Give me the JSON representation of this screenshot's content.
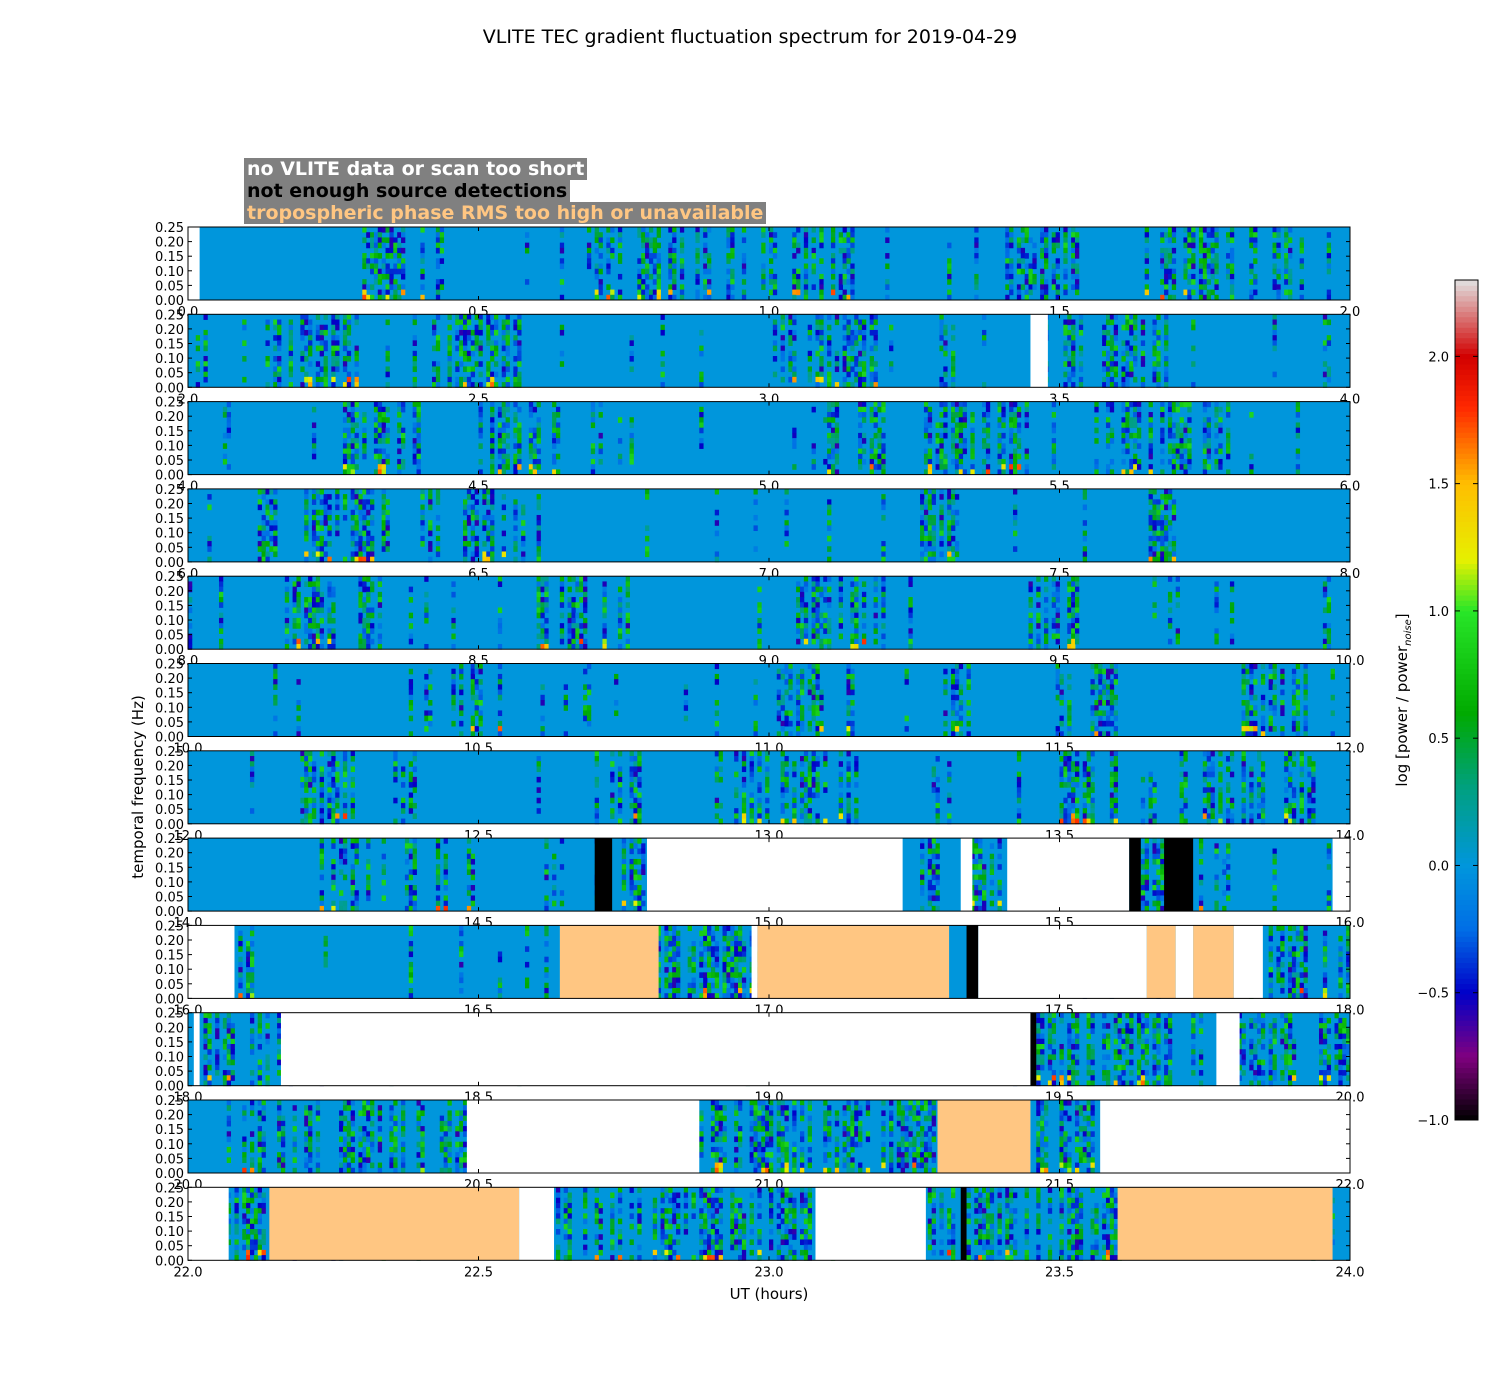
{
  "chart_data": {
    "type": "heatmap",
    "title": "VLITE TEC gradient fluctuation spectrum for 2019-04-29",
    "xlabel": "UT (hours)",
    "ylabel": "temporal frequency (Hz)",
    "ylim": [
      0,
      0.25
    ],
    "yticks": [
      "0.00",
      "0.05",
      "0.10",
      "0.15",
      "0.20",
      "0.25"
    ],
    "colorbar": {
      "label_main": "log [power / power",
      "label_sub": "noise",
      "label_close": "]",
      "range": [
        -1.0,
        2.3
      ],
      "ticks": [
        "−1.0",
        "−0.5",
        "0.0",
        "0.5",
        "1.0",
        "1.5",
        "2.0"
      ],
      "tick_values": [
        -1.0,
        -0.5,
        0.0,
        0.5,
        1.0,
        1.5,
        2.0
      ]
    },
    "flag_legend": [
      {
        "text": "no VLITE data or scan too short",
        "text_color": "#ffffff",
        "bg": "#808080"
      },
      {
        "text": "not enough source detections",
        "text_color": "#000000",
        "bg": "#808080"
      },
      {
        "text": "tropospheric phase RMS too high or unavailable",
        "text_color": "#ffc682",
        "bg": "#808080"
      }
    ],
    "colors": {
      "base": "#0096dc",
      "black_flag": "#000000",
      "orange_flag": "#ffc682",
      "no_data": "#ffffff"
    },
    "panels": [
      {
        "start": 0,
        "end": 2,
        "xticks": [
          "0.0",
          "0.5",
          "1.0",
          "1.5",
          "2.0"
        ],
        "white": [
          [
            0.0,
            0.02
          ]
        ],
        "black": [],
        "orange": [],
        "busy": [
          [
            0.3,
            0.45
          ],
          [
            0.7,
            0.95
          ],
          [
            1.0,
            1.15
          ],
          [
            1.4,
            1.55
          ],
          [
            1.65,
            1.9
          ]
        ]
      },
      {
        "start": 2,
        "end": 4,
        "xticks": [
          "2.0",
          "2.5",
          "3.0",
          "3.5",
          "4.0"
        ],
        "white": [
          [
            3.45,
            3.48
          ]
        ],
        "black": [],
        "orange": [],
        "busy": [
          [
            2.15,
            2.3
          ],
          [
            2.45,
            2.6
          ],
          [
            3.0,
            3.2
          ],
          [
            3.5,
            3.7
          ]
        ]
      },
      {
        "start": 4,
        "end": 6,
        "xticks": [
          "4.0",
          "4.5",
          "5.0",
          "5.5",
          "6.0"
        ],
        "white": [],
        "black": [],
        "orange": [],
        "busy": [
          [
            4.27,
            4.4
          ],
          [
            4.5,
            4.65
          ],
          [
            5.1,
            5.2
          ],
          [
            5.27,
            5.45
          ],
          [
            5.6,
            5.8
          ]
        ]
      },
      {
        "start": 6,
        "end": 8,
        "xticks": [
          "6.0",
          "6.5",
          "7.0",
          "7.5",
          "8.0"
        ],
        "white": [],
        "black": [],
        "orange": [],
        "busy": [
          [
            6.1,
            6.35
          ],
          [
            6.4,
            6.55
          ],
          [
            7.25,
            7.33
          ],
          [
            7.65,
            7.75
          ]
        ]
      },
      {
        "start": 8,
        "end": 10,
        "xticks": [
          "8.0",
          "8.5",
          "9.0",
          "9.5",
          "10.0"
        ],
        "white": [],
        "black": [],
        "orange": [],
        "busy": [
          [
            8.15,
            8.35
          ],
          [
            8.6,
            8.75
          ],
          [
            9.05,
            9.2
          ],
          [
            9.45,
            9.55
          ]
        ]
      },
      {
        "start": 10,
        "end": 12,
        "xticks": [
          "10.0",
          "10.5",
          "11.0",
          "11.5",
          "12.0"
        ],
        "white": [],
        "black": [],
        "orange": [],
        "busy": [
          [
            10.45,
            10.55
          ],
          [
            11.0,
            11.15
          ],
          [
            11.3,
            11.35
          ],
          [
            11.55,
            11.6
          ],
          [
            11.8,
            11.95
          ]
        ]
      },
      {
        "start": 12,
        "end": 14,
        "xticks": [
          "12.0",
          "12.5",
          "13.0",
          "13.5",
          "14.0"
        ],
        "white": [],
        "black": [],
        "orange": [],
        "busy": [
          [
            12.2,
            12.3
          ],
          [
            12.7,
            12.8
          ],
          [
            12.95,
            13.15
          ],
          [
            13.5,
            13.6
          ],
          [
            13.7,
            13.95
          ]
        ]
      },
      {
        "start": 14,
        "end": 16,
        "xticks": [
          "14.0",
          "14.5",
          "15.0",
          "15.5",
          "16.0"
        ],
        "white": [
          [
            14.79,
            15.23
          ],
          [
            15.33,
            15.35
          ],
          [
            15.41,
            15.62
          ],
          [
            15.97,
            16.0
          ]
        ],
        "black": [
          [
            14.7,
            14.73
          ],
          [
            15.62,
            15.64
          ],
          [
            15.68,
            15.73
          ]
        ],
        "orange": [],
        "busy": [
          [
            14.22,
            14.32
          ],
          [
            14.37,
            14.5
          ],
          [
            14.73,
            14.79
          ],
          [
            15.23,
            15.3
          ],
          [
            15.35,
            15.41
          ],
          [
            15.64,
            15.8
          ]
        ]
      },
      {
        "start": 16,
        "end": 18,
        "xticks": [
          "16.0",
          "16.5",
          "17.0",
          "17.5",
          "18.0"
        ],
        "white": [
          [
            16.0,
            16.08
          ],
          [
            16.97,
            16.98
          ],
          [
            17.36,
            17.65
          ],
          [
            17.7,
            17.73
          ],
          [
            17.8,
            17.85
          ]
        ],
        "black": [
          [
            17.34,
            17.36
          ]
        ],
        "orange": [
          [
            16.64,
            16.81
          ],
          [
            16.98,
            17.31
          ],
          [
            17.65,
            17.7
          ],
          [
            17.73,
            17.8
          ]
        ],
        "busy": [
          [
            16.08,
            16.14
          ],
          [
            16.81,
            16.98
          ],
          [
            17.85,
            18.0
          ]
        ]
      },
      {
        "start": 18,
        "end": 20,
        "xticks": [
          "18.0",
          "18.5",
          "19.0",
          "19.5",
          "20.0"
        ],
        "white": [
          [
            18.01,
            18.02
          ],
          [
            18.16,
            19.45
          ],
          [
            19.77,
            19.81
          ]
        ],
        "black": [
          [
            19.45,
            19.46
          ]
        ],
        "orange": [],
        "busy": [
          [
            18.03,
            18.16
          ],
          [
            19.46,
            19.77
          ],
          [
            19.81,
            20.0
          ]
        ]
      },
      {
        "start": 20,
        "end": 22,
        "xticks": [
          "20.0",
          "20.5",
          "21.0",
          "21.5",
          "22.0"
        ],
        "white": [
          [
            20.48,
            20.88
          ],
          [
            21.57,
            22.0
          ]
        ],
        "black": [],
        "orange": [
          [
            21.29,
            21.45
          ]
        ],
        "busy": [
          [
            20.08,
            20.48
          ],
          [
            20.88,
            21.29
          ],
          [
            21.45,
            21.57
          ]
        ]
      },
      {
        "start": 22,
        "end": 24,
        "xticks": [
          "22.0",
          "22.5",
          "23.0",
          "23.5",
          "24.0"
        ],
        "white": [
          [
            22.0,
            22.07
          ],
          [
            22.57,
            22.63
          ],
          [
            23.08,
            23.27
          ]
        ],
        "black": [
          [
            23.33,
            23.34
          ]
        ],
        "orange": [
          [
            22.14,
            22.57
          ],
          [
            23.6,
            23.97
          ]
        ],
        "busy": [
          [
            22.07,
            22.14
          ],
          [
            22.63,
            23.08
          ],
          [
            23.27,
            23.6
          ]
        ]
      }
    ]
  }
}
